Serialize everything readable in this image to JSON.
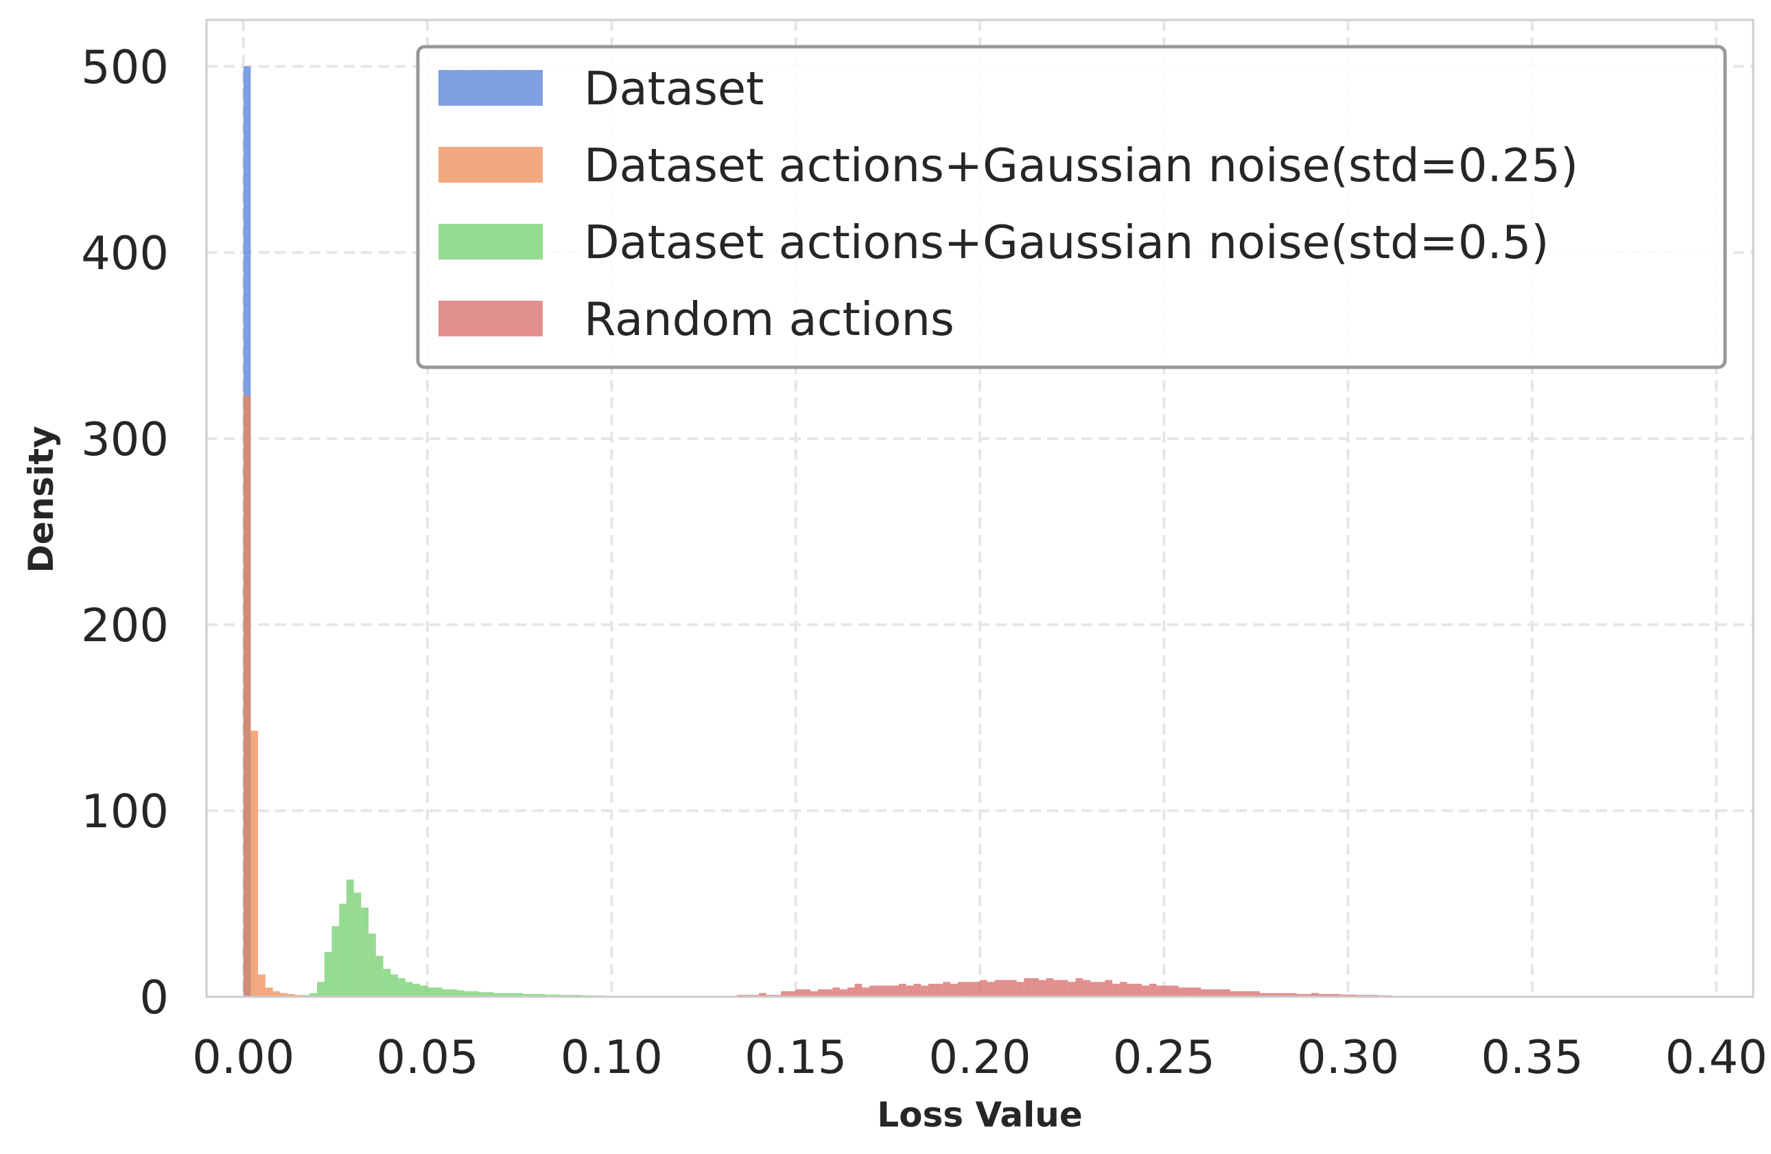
{
  "chart_data": {
    "type": "histogram",
    "xlabel": "Loss Value",
    "ylabel": "Density",
    "xlim": [
      -0.01,
      0.41
    ],
    "ylim": [
      0,
      525
    ],
    "xticks": [
      0.0,
      0.05,
      0.1,
      0.15,
      0.2,
      0.25,
      0.3,
      0.35,
      0.4
    ],
    "xtick_labels": [
      "0.00",
      "0.05",
      "0.10",
      "0.15",
      "0.20",
      "0.25",
      "0.30",
      "0.35",
      "0.40"
    ],
    "yticks": [
      0,
      100,
      200,
      300,
      400,
      500
    ],
    "ytick_labels": [
      "0",
      "100",
      "200",
      "300",
      "400",
      "500"
    ],
    "grid": true,
    "legend_position": "top-right",
    "bin_width": 0.002,
    "series": [
      {
        "name": "Dataset",
        "color": "#4878d0",
        "opacity": 0.7,
        "bins": [
          [
            0.0,
            500
          ]
        ]
      },
      {
        "name": "Dataset actions+Gaussian noise(std=0.25)",
        "color": "#ee854a",
        "opacity": 0.7,
        "bins": [
          [
            0.0,
            323
          ],
          [
            0.002,
            143
          ],
          [
            0.004,
            12
          ],
          [
            0.006,
            5
          ],
          [
            0.008,
            3
          ],
          [
            0.01,
            2
          ],
          [
            0.012,
            1.5
          ],
          [
            0.014,
            1
          ]
        ]
      },
      {
        "name": "Dataset actions+Gaussian noise(std=0.5)",
        "color": "#6acc64",
        "opacity": 0.7,
        "bins": [
          [
            0.016,
            1
          ],
          [
            0.018,
            2
          ],
          [
            0.02,
            8
          ],
          [
            0.022,
            24
          ],
          [
            0.024,
            38
          ],
          [
            0.026,
            50
          ],
          [
            0.028,
            63
          ],
          [
            0.03,
            56
          ],
          [
            0.032,
            48
          ],
          [
            0.034,
            34
          ],
          [
            0.036,
            22
          ],
          [
            0.038,
            15
          ],
          [
            0.04,
            12
          ],
          [
            0.042,
            10
          ],
          [
            0.044,
            8
          ],
          [
            0.046,
            7
          ],
          [
            0.048,
            6
          ],
          [
            0.05,
            5
          ],
          [
            0.052,
            5
          ],
          [
            0.054,
            4
          ],
          [
            0.056,
            4
          ],
          [
            0.058,
            3.5
          ],
          [
            0.06,
            3
          ],
          [
            0.062,
            3
          ],
          [
            0.064,
            2.5
          ],
          [
            0.066,
            2.5
          ],
          [
            0.068,
            2
          ],
          [
            0.07,
            2
          ],
          [
            0.072,
            2
          ],
          [
            0.074,
            2
          ],
          [
            0.076,
            1.5
          ],
          [
            0.078,
            1.5
          ],
          [
            0.08,
            1.5
          ],
          [
            0.082,
            1.2
          ],
          [
            0.084,
            1.2
          ],
          [
            0.086,
            1
          ],
          [
            0.088,
            1
          ],
          [
            0.09,
            1
          ],
          [
            0.092,
            0.8
          ],
          [
            0.094,
            0.8
          ],
          [
            0.096,
            0.7
          ],
          [
            0.098,
            0.6
          ],
          [
            0.1,
            0.5
          ]
        ]
      },
      {
        "name": "Random actions",
        "color": "#d65f5f",
        "opacity": 0.7,
        "bins": [
          [
            0.118,
            0.5
          ],
          [
            0.122,
            0.5
          ],
          [
            0.128,
            0.5
          ],
          [
            0.132,
            0.5
          ],
          [
            0.134,
            1
          ],
          [
            0.136,
            1
          ],
          [
            0.138,
            1
          ],
          [
            0.14,
            2
          ],
          [
            0.142,
            1
          ],
          [
            0.144,
            1
          ],
          [
            0.146,
            3
          ],
          [
            0.148,
            3
          ],
          [
            0.15,
            4
          ],
          [
            0.152,
            4
          ],
          [
            0.154,
            3
          ],
          [
            0.156,
            4
          ],
          [
            0.158,
            4
          ],
          [
            0.16,
            5
          ],
          [
            0.162,
            4
          ],
          [
            0.164,
            5
          ],
          [
            0.166,
            7
          ],
          [
            0.168,
            5
          ],
          [
            0.17,
            6
          ],
          [
            0.172,
            6
          ],
          [
            0.174,
            6
          ],
          [
            0.176,
            6
          ],
          [
            0.178,
            7
          ],
          [
            0.18,
            6
          ],
          [
            0.182,
            7
          ],
          [
            0.184,
            6
          ],
          [
            0.186,
            7
          ],
          [
            0.188,
            7
          ],
          [
            0.19,
            8
          ],
          [
            0.192,
            7
          ],
          [
            0.194,
            8
          ],
          [
            0.196,
            8
          ],
          [
            0.198,
            8
          ],
          [
            0.2,
            9
          ],
          [
            0.202,
            8
          ],
          [
            0.204,
            9
          ],
          [
            0.206,
            9
          ],
          [
            0.208,
            9
          ],
          [
            0.21,
            8
          ],
          [
            0.212,
            10
          ],
          [
            0.214,
            10
          ],
          [
            0.216,
            9
          ],
          [
            0.218,
            10
          ],
          [
            0.22,
            9
          ],
          [
            0.222,
            9
          ],
          [
            0.224,
            8
          ],
          [
            0.226,
            10
          ],
          [
            0.228,
            9
          ],
          [
            0.23,
            8
          ],
          [
            0.232,
            8
          ],
          [
            0.234,
            9
          ],
          [
            0.236,
            7
          ],
          [
            0.238,
            8
          ],
          [
            0.24,
            7
          ],
          [
            0.242,
            7
          ],
          [
            0.244,
            6
          ],
          [
            0.246,
            7
          ],
          [
            0.248,
            6
          ],
          [
            0.25,
            6
          ],
          [
            0.252,
            6
          ],
          [
            0.254,
            5
          ],
          [
            0.256,
            5
          ],
          [
            0.258,
            5
          ],
          [
            0.26,
            4
          ],
          [
            0.262,
            4
          ],
          [
            0.264,
            4
          ],
          [
            0.266,
            4
          ],
          [
            0.268,
            3
          ],
          [
            0.27,
            3
          ],
          [
            0.272,
            3
          ],
          [
            0.274,
            3
          ],
          [
            0.276,
            2
          ],
          [
            0.278,
            2
          ],
          [
            0.28,
            2
          ],
          [
            0.282,
            2
          ],
          [
            0.284,
            2
          ],
          [
            0.286,
            1.5
          ],
          [
            0.288,
            1.5
          ],
          [
            0.29,
            2
          ],
          [
            0.292,
            1.5
          ],
          [
            0.294,
            1.5
          ],
          [
            0.296,
            1.5
          ],
          [
            0.298,
            1.2
          ],
          [
            0.3,
            1.2
          ],
          [
            0.302,
            1
          ],
          [
            0.304,
            1
          ],
          [
            0.306,
            1
          ],
          [
            0.308,
            0.8
          ],
          [
            0.31,
            0.8
          ],
          [
            0.314,
            0.6
          ],
          [
            0.318,
            0.5
          ],
          [
            0.322,
            0.5
          ],
          [
            0.326,
            0.5
          ],
          [
            0.33,
            0.4
          ],
          [
            0.336,
            0.3
          ],
          [
            0.342,
            0.3
          ]
        ]
      }
    ]
  }
}
